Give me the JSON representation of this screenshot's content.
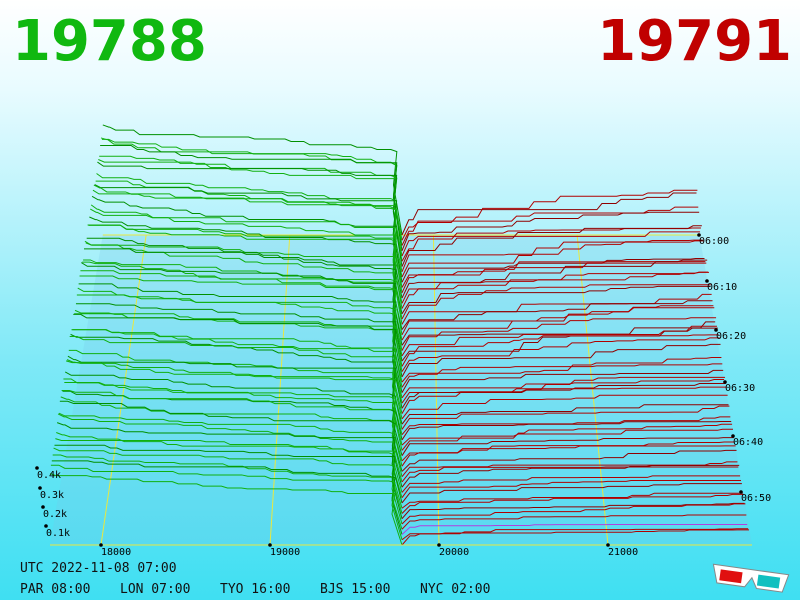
{
  "header": {
    "bid": "19788",
    "ask": "19791"
  },
  "axis": {
    "price_labels": [
      "18000",
      "19000",
      "20000",
      "21000"
    ],
    "time_labels": [
      "06:00",
      "06:10",
      "06:20",
      "06:30",
      "06:40",
      "06:50"
    ],
    "depth_labels": [
      "0.4k",
      "0.3k",
      "0.2k",
      "0.1k"
    ]
  },
  "footer": {
    "utc": "UTC 2022-11-08 07:00",
    "cities": [
      "PAR 08:00",
      "LON 07:00",
      "TYO 16:00",
      "BJS 15:00",
      "NYC 02:00"
    ]
  }
}
